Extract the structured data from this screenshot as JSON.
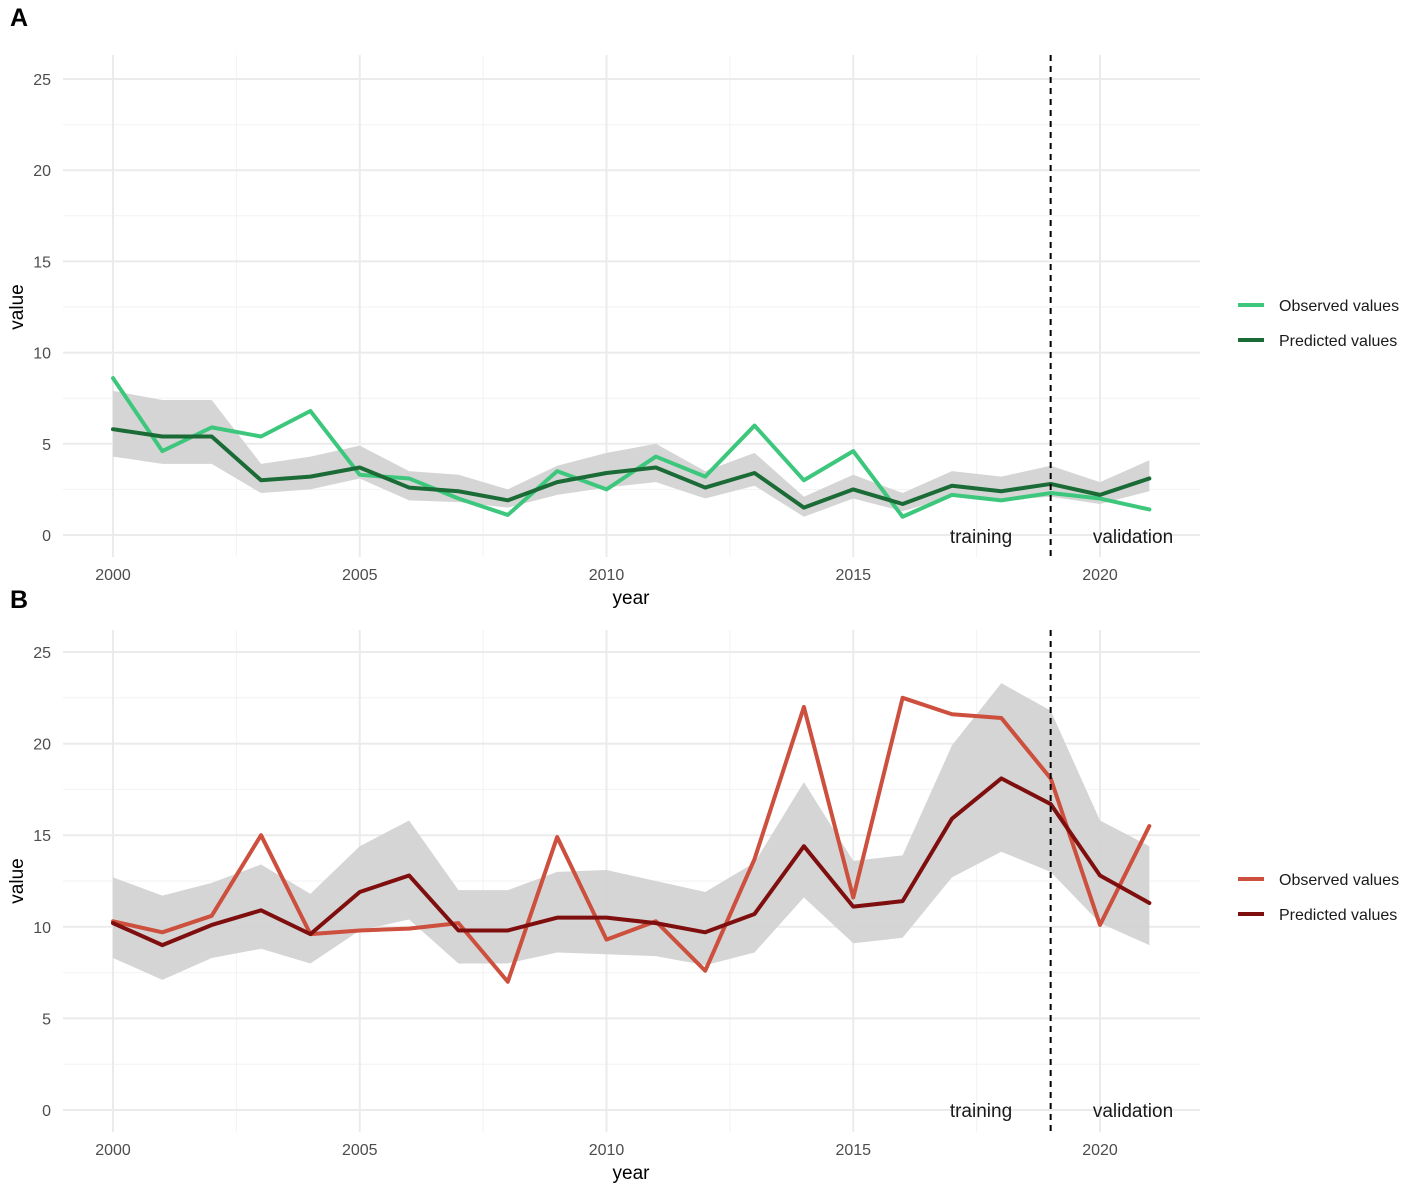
{
  "chart_data": [
    {
      "panel_label": "A",
      "type": "line",
      "xlabel": "year",
      "ylabel": "value",
      "x": [
        2000,
        2001,
        2002,
        2003,
        2004,
        2005,
        2006,
        2007,
        2008,
        2009,
        2010,
        2011,
        2012,
        2013,
        2014,
        2015,
        2016,
        2017,
        2018,
        2019,
        2020,
        2021
      ],
      "xlim": [
        1999,
        2021.2
      ],
      "ylim": [
        -1.2,
        25.8
      ],
      "x_ticks": [
        "2000",
        "2005",
        "2010",
        "2015",
        "2020"
      ],
      "y_ticks": [
        "0",
        "5",
        "10",
        "15",
        "20",
        "25"
      ],
      "x_tick_values": [
        2000,
        2005,
        2010,
        2015,
        2020
      ],
      "y_tick_values": [
        0,
        5,
        10,
        15,
        20,
        25
      ],
      "split_year": 2019,
      "annotations": {
        "left": "training",
        "right": "validation"
      },
      "colors": {
        "observed": "#3dc77d",
        "predicted": "#1b6b36",
        "band": "#d3d3d3"
      },
      "series": [
        {
          "name": "Observed values",
          "values": [
            8.6,
            4.6,
            5.9,
            5.4,
            6.8,
            3.3,
            3.1,
            2.0,
            1.1,
            3.5,
            2.5,
            4.3,
            3.2,
            6.0,
            3.0,
            4.6,
            1.0,
            2.2,
            1.9,
            2.3,
            2.0,
            1.4
          ]
        },
        {
          "name": "Predicted values",
          "values": [
            5.8,
            5.4,
            5.4,
            3.0,
            3.2,
            3.7,
            2.6,
            2.4,
            1.9,
            2.9,
            3.4,
            3.7,
            2.6,
            3.4,
            1.5,
            2.5,
            1.7,
            2.7,
            2.4,
            2.8,
            2.2,
            3.1
          ]
        }
      ],
      "band_lower": [
        4.3,
        3.9,
        3.9,
        2.3,
        2.5,
        3.1,
        1.9,
        1.8,
        1.5,
        2.2,
        2.6,
        2.9,
        2.0,
        2.7,
        1.0,
        2.0,
        1.3,
        2.1,
        1.9,
        2.1,
        1.7,
        2.4
      ],
      "band_upper": [
        7.9,
        7.4,
        7.4,
        3.9,
        4.3,
        4.9,
        3.5,
        3.3,
        2.5,
        3.8,
        4.5,
        5.0,
        3.5,
        4.5,
        2.1,
        3.3,
        2.3,
        3.5,
        3.2,
        3.8,
        2.9,
        4.1
      ]
    },
    {
      "panel_label": "B",
      "type": "line",
      "xlabel": "year",
      "ylabel": "value",
      "x": [
        2000,
        2001,
        2002,
        2003,
        2004,
        2005,
        2006,
        2007,
        2008,
        2009,
        2010,
        2011,
        2012,
        2013,
        2014,
        2015,
        2016,
        2017,
        2018,
        2019,
        2020,
        2021
      ],
      "xlim": [
        1999,
        2021.2
      ],
      "ylim": [
        -1.2,
        25.8
      ],
      "x_ticks": [
        "2000",
        "2005",
        "2010",
        "2015",
        "2020"
      ],
      "y_ticks": [
        "0",
        "5",
        "10",
        "15",
        "20",
        "25"
      ],
      "x_tick_values": [
        2000,
        2005,
        2010,
        2015,
        2020
      ],
      "y_tick_values": [
        0,
        5,
        10,
        15,
        20,
        25
      ],
      "split_year": 2019,
      "annotations": {
        "left": "training",
        "right": "validation"
      },
      "colors": {
        "observed": "#cd4f3d",
        "predicted": "#7f0f0f",
        "band": "#d3d3d3"
      },
      "series": [
        {
          "name": "Observed values",
          "values": [
            10.3,
            9.7,
            10.6,
            15.0,
            9.6,
            9.8,
            9.9,
            10.2,
            7.0,
            14.9,
            9.3,
            10.3,
            7.6,
            13.7,
            22.0,
            11.6,
            22.5,
            21.6,
            21.4,
            18.1,
            10.1,
            15.5
          ]
        },
        {
          "name": "Predicted values",
          "values": [
            10.2,
            9.0,
            10.1,
            10.9,
            9.6,
            11.9,
            12.8,
            9.8,
            9.8,
            10.5,
            10.5,
            10.2,
            9.7,
            10.7,
            14.4,
            11.1,
            11.4,
            15.9,
            18.1,
            16.7,
            12.8,
            11.3
          ]
        }
      ],
      "band_lower": [
        8.3,
        7.1,
        8.3,
        8.8,
        8.0,
        9.8,
        10.4,
        8.0,
        8.0,
        8.6,
        8.5,
        8.4,
        7.9,
        8.6,
        11.6,
        9.1,
        9.4,
        12.7,
        14.1,
        13.0,
        10.2,
        9.0
      ],
      "band_upper": [
        12.7,
        11.7,
        12.4,
        13.4,
        11.8,
        14.4,
        15.8,
        12.0,
        12.0,
        13.0,
        13.1,
        12.5,
        11.9,
        13.5,
        17.9,
        13.6,
        13.9,
        19.9,
        23.3,
        21.8,
        15.8,
        14.4
      ]
    }
  ]
}
